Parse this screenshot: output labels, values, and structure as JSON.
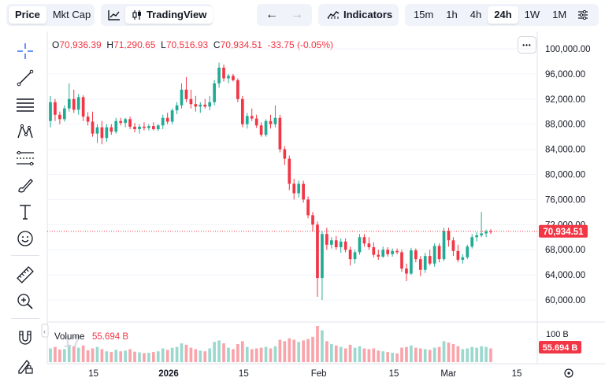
{
  "toolbar": {
    "metric_tabs": [
      "Price",
      "Mkt Cap"
    ],
    "tradingview_label": "TradingView",
    "indicators_label": "Indicators",
    "intervals": [
      "15m",
      "1h",
      "4h",
      "24h",
      "1W",
      "1M"
    ],
    "active_interval": "24h",
    "colors": {
      "up": "#22ab94",
      "down": "#f23645",
      "bg": "#f0f3fa"
    }
  },
  "left_tools": [
    "crosshair-icon",
    "trend-line-icon",
    "horizontal-lines-icon",
    "pattern-icon",
    "fib-icon",
    "brush-icon",
    "text-icon",
    "emoji-icon",
    "ruler-icon",
    "zoom-in-icon",
    "magnet-icon",
    "lock-draw-icon"
  ],
  "legend": {
    "o_label": "O",
    "o_value": "70,936.39",
    "h_label": "H",
    "h_value": "71,290.65",
    "l_label": "L",
    "l_value": "70,516.93",
    "c_label": "C",
    "c_value": "70,934.51",
    "change": "-33.75 (-0.05%)",
    "more_label": "•••"
  },
  "chart_data": {
    "type": "candlestick",
    "y_ticks": [
      "100,000.00",
      "96,000.00",
      "92,000.00",
      "88,000.00",
      "84,000.00",
      "80,000.00",
      "76,000.00",
      "72,000.00",
      "68,000.00",
      "64,000.00",
      "60,000.00"
    ],
    "ylim": [
      58000,
      101000
    ],
    "x_ticks": [
      "15",
      "2026",
      "15",
      "Feb",
      "15",
      "Mar",
      "15"
    ],
    "last_price_label": "70,934.51",
    "last_price": 70934.51,
    "volume_label": "Volume",
    "volume_value": "55.694 B",
    "volume_axis_label": "100 B",
    "volume_last_label": "55.694 B",
    "watermark": "17",
    "candles": [
      {
        "o": 88500,
        "h": 92500,
        "l": 87500,
        "c": 91500,
        "v": 38
      },
      {
        "o": 91500,
        "h": 92000,
        "l": 88500,
        "c": 89500,
        "v": 42
      },
      {
        "o": 89500,
        "h": 90000,
        "l": 88000,
        "c": 88800,
        "v": 35
      },
      {
        "o": 88800,
        "h": 91000,
        "l": 88400,
        "c": 90500,
        "v": 36
      },
      {
        "o": 90500,
        "h": 94500,
        "l": 90000,
        "c": 92000,
        "v": 48
      },
      {
        "o": 92000,
        "h": 93500,
        "l": 89800,
        "c": 90300,
        "v": 44
      },
      {
        "o": 90300,
        "h": 92800,
        "l": 89500,
        "c": 92300,
        "v": 40
      },
      {
        "o": 92300,
        "h": 92600,
        "l": 88500,
        "c": 89200,
        "v": 46
      },
      {
        "o": 89200,
        "h": 89900,
        "l": 87800,
        "c": 88400,
        "v": 33
      },
      {
        "o": 88400,
        "h": 90000,
        "l": 86000,
        "c": 86500,
        "v": 38
      },
      {
        "o": 86500,
        "h": 88000,
        "l": 85000,
        "c": 87500,
        "v": 42
      },
      {
        "o": 87500,
        "h": 88500,
        "l": 84800,
        "c": 85800,
        "v": 36
      },
      {
        "o": 85800,
        "h": 88000,
        "l": 85200,
        "c": 87500,
        "v": 30
      },
      {
        "o": 87500,
        "h": 88000,
        "l": 86300,
        "c": 86800,
        "v": 28
      },
      {
        "o": 86800,
        "h": 89000,
        "l": 86500,
        "c": 88500,
        "v": 34
      },
      {
        "o": 88500,
        "h": 89000,
        "l": 87800,
        "c": 88200,
        "v": 30
      },
      {
        "o": 88200,
        "h": 89000,
        "l": 87500,
        "c": 88800,
        "v": 32
      },
      {
        "o": 88800,
        "h": 89200,
        "l": 87200,
        "c": 87600,
        "v": 36
      },
      {
        "o": 87600,
        "h": 88200,
        "l": 86700,
        "c": 87200,
        "v": 29
      },
      {
        "o": 87200,
        "h": 88000,
        "l": 86500,
        "c": 87600,
        "v": 27
      },
      {
        "o": 87600,
        "h": 88300,
        "l": 87000,
        "c": 87400,
        "v": 25
      },
      {
        "o": 87400,
        "h": 88000,
        "l": 87000,
        "c": 87700,
        "v": 26
      },
      {
        "o": 87700,
        "h": 88300,
        "l": 87000,
        "c": 87200,
        "v": 28
      },
      {
        "o": 87200,
        "h": 88000,
        "l": 86900,
        "c": 87800,
        "v": 30
      },
      {
        "o": 87800,
        "h": 89500,
        "l": 87200,
        "c": 89000,
        "v": 38
      },
      {
        "o": 89000,
        "h": 89800,
        "l": 88000,
        "c": 88400,
        "v": 34
      },
      {
        "o": 88400,
        "h": 90500,
        "l": 88000,
        "c": 90200,
        "v": 40
      },
      {
        "o": 90200,
        "h": 91500,
        "l": 89600,
        "c": 91000,
        "v": 42
      },
      {
        "o": 91000,
        "h": 94500,
        "l": 90500,
        "c": 93500,
        "v": 52
      },
      {
        "o": 93500,
        "h": 95500,
        "l": 91500,
        "c": 92000,
        "v": 48
      },
      {
        "o": 92000,
        "h": 93500,
        "l": 90500,
        "c": 91200,
        "v": 40
      },
      {
        "o": 91200,
        "h": 92500,
        "l": 90000,
        "c": 90800,
        "v": 36
      },
      {
        "o": 90800,
        "h": 91500,
        "l": 89800,
        "c": 91100,
        "v": 32
      },
      {
        "o": 91100,
        "h": 92000,
        "l": 90500,
        "c": 90800,
        "v": 30
      },
      {
        "o": 90800,
        "h": 92500,
        "l": 90200,
        "c": 91500,
        "v": 38
      },
      {
        "o": 91500,
        "h": 95000,
        "l": 91000,
        "c": 94500,
        "v": 56
      },
      {
        "o": 94500,
        "h": 97800,
        "l": 93800,
        "c": 97000,
        "v": 60
      },
      {
        "o": 97000,
        "h": 97500,
        "l": 94800,
        "c": 95300,
        "v": 52
      },
      {
        "o": 95300,
        "h": 96000,
        "l": 94500,
        "c": 95700,
        "v": 40
      },
      {
        "o": 95700,
        "h": 96000,
        "l": 94800,
        "c": 95000,
        "v": 36
      },
      {
        "o": 95000,
        "h": 95300,
        "l": 91500,
        "c": 92000,
        "v": 50
      },
      {
        "o": 92000,
        "h": 92500,
        "l": 87500,
        "c": 88000,
        "v": 58
      },
      {
        "o": 88000,
        "h": 89800,
        "l": 87300,
        "c": 89300,
        "v": 42
      },
      {
        "o": 89300,
        "h": 90500,
        "l": 88500,
        "c": 88900,
        "v": 36
      },
      {
        "o": 88900,
        "h": 89500,
        "l": 87400,
        "c": 87800,
        "v": 38
      },
      {
        "o": 87800,
        "h": 88300,
        "l": 86000,
        "c": 86300,
        "v": 40
      },
      {
        "o": 86300,
        "h": 88800,
        "l": 86000,
        "c": 88500,
        "v": 42
      },
      {
        "o": 88500,
        "h": 89500,
        "l": 87300,
        "c": 88000,
        "v": 38
      },
      {
        "o": 88000,
        "h": 91000,
        "l": 87500,
        "c": 89000,
        "v": 44
      },
      {
        "o": 89000,
        "h": 89500,
        "l": 83500,
        "c": 84000,
        "v": 62
      },
      {
        "o": 84000,
        "h": 84500,
        "l": 81500,
        "c": 82500,
        "v": 58
      },
      {
        "o": 82500,
        "h": 83000,
        "l": 77500,
        "c": 78500,
        "v": 66
      },
      {
        "o": 78500,
        "h": 79300,
        "l": 76000,
        "c": 77000,
        "v": 62
      },
      {
        "o": 77000,
        "h": 79000,
        "l": 76300,
        "c": 78500,
        "v": 56
      },
      {
        "o": 78500,
        "h": 79000,
        "l": 75500,
        "c": 76000,
        "v": 60
      },
      {
        "o": 76000,
        "h": 76500,
        "l": 73000,
        "c": 73500,
        "v": 64
      },
      {
        "o": 73500,
        "h": 74000,
        "l": 71000,
        "c": 72000,
        "v": 70
      },
      {
        "o": 72000,
        "h": 72500,
        "l": 60500,
        "c": 63500,
        "v": 100
      },
      {
        "o": 63500,
        "h": 71000,
        "l": 60000,
        "c": 70500,
        "v": 88
      },
      {
        "o": 70500,
        "h": 71500,
        "l": 68000,
        "c": 68800,
        "v": 58
      },
      {
        "o": 68800,
        "h": 70000,
        "l": 68200,
        "c": 69500,
        "v": 50
      },
      {
        "o": 69500,
        "h": 70200,
        "l": 68000,
        "c": 68400,
        "v": 46
      },
      {
        "o": 68400,
        "h": 69800,
        "l": 67500,
        "c": 69300,
        "v": 42
      },
      {
        "o": 69300,
        "h": 69800,
        "l": 67600,
        "c": 68000,
        "v": 38
      },
      {
        "o": 68000,
        "h": 68500,
        "l": 65500,
        "c": 66500,
        "v": 48
      },
      {
        "o": 66500,
        "h": 68000,
        "l": 65800,
        "c": 67600,
        "v": 40
      },
      {
        "o": 67600,
        "h": 70500,
        "l": 67200,
        "c": 70000,
        "v": 44
      },
      {
        "o": 70000,
        "h": 70500,
        "l": 68500,
        "c": 69000,
        "v": 38
      },
      {
        "o": 69000,
        "h": 70000,
        "l": 68000,
        "c": 68400,
        "v": 36
      },
      {
        "o": 68400,
        "h": 69200,
        "l": 66800,
        "c": 67200,
        "v": 38
      },
      {
        "o": 67200,
        "h": 68000,
        "l": 66400,
        "c": 66900,
        "v": 32
      },
      {
        "o": 66900,
        "h": 68500,
        "l": 66700,
        "c": 68000,
        "v": 30
      },
      {
        "o": 68000,
        "h": 68400,
        "l": 66900,
        "c": 67300,
        "v": 28
      },
      {
        "o": 67300,
        "h": 68200,
        "l": 66900,
        "c": 67800,
        "v": 26
      },
      {
        "o": 67800,
        "h": 68200,
        "l": 67300,
        "c": 67600,
        "v": 24
      },
      {
        "o": 67600,
        "h": 68000,
        "l": 64500,
        "c": 65000,
        "v": 40
      },
      {
        "o": 65000,
        "h": 65800,
        "l": 63000,
        "c": 64200,
        "v": 42
      },
      {
        "o": 64200,
        "h": 68300,
        "l": 64000,
        "c": 67900,
        "v": 46
      },
      {
        "o": 67900,
        "h": 68200,
        "l": 66000,
        "c": 66500,
        "v": 40
      },
      {
        "o": 66500,
        "h": 67000,
        "l": 63800,
        "c": 64800,
        "v": 38
      },
      {
        "o": 64800,
        "h": 67500,
        "l": 64300,
        "c": 67000,
        "v": 36
      },
      {
        "o": 67000,
        "h": 68000,
        "l": 65500,
        "c": 65800,
        "v": 34
      },
      {
        "o": 65800,
        "h": 69000,
        "l": 65300,
        "c": 68600,
        "v": 40
      },
      {
        "o": 68600,
        "h": 69000,
        "l": 66000,
        "c": 66500,
        "v": 42
      },
      {
        "o": 66500,
        "h": 71500,
        "l": 66200,
        "c": 71000,
        "v": 58
      },
      {
        "o": 71000,
        "h": 71500,
        "l": 68500,
        "c": 69500,
        "v": 54
      },
      {
        "o": 69500,
        "h": 70000,
        "l": 67000,
        "c": 67800,
        "v": 50
      },
      {
        "o": 67800,
        "h": 68800,
        "l": 66000,
        "c": 66400,
        "v": 44
      },
      {
        "o": 66400,
        "h": 67300,
        "l": 65800,
        "c": 66800,
        "v": 36
      },
      {
        "o": 66800,
        "h": 68800,
        "l": 66500,
        "c": 68500,
        "v": 38
      },
      {
        "o": 68500,
        "h": 70500,
        "l": 68200,
        "c": 70000,
        "v": 42
      },
      {
        "o": 70000,
        "h": 70800,
        "l": 69300,
        "c": 70300,
        "v": 40
      },
      {
        "o": 70300,
        "h": 74000,
        "l": 70000,
        "c": 70600,
        "v": 44
      },
      {
        "o": 70600,
        "h": 71200,
        "l": 70000,
        "c": 70900,
        "v": 42
      },
      {
        "o": 70936.39,
        "h": 71290.65,
        "l": 70516.93,
        "c": 70934.51,
        "v": 38
      }
    ]
  }
}
